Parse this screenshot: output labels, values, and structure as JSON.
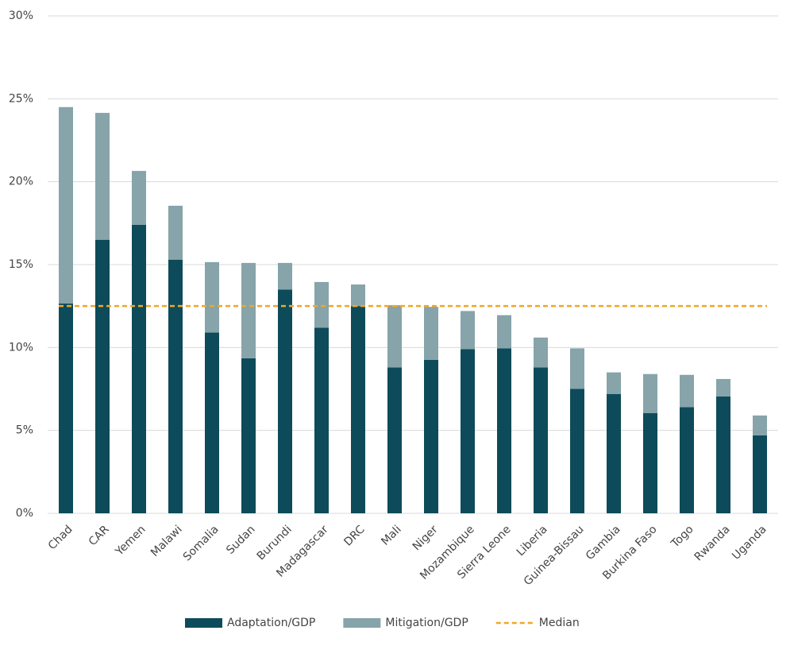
{
  "chart_data": {
    "type": "bar",
    "stacked": true,
    "categories": [
      "Chad",
      "CAR",
      "Yemen",
      "Malawi",
      "Somalia",
      "Sudan",
      "Burundi",
      "Madagascar",
      "DRC",
      "Mali",
      "Niger",
      "Mozambique",
      "Sierra Leone",
      "Liberia",
      "Guinea-Bissau",
      "Gambia",
      "Burkina Faso",
      "Togo",
      "Rwanda",
      "Uganda"
    ],
    "series": [
      {
        "name": "Adaptation/GDP",
        "color": "#0d4b5a",
        "values": [
          12.65,
          16.5,
          17.4,
          15.3,
          10.9,
          9.35,
          13.5,
          11.2,
          12.5,
          8.8,
          9.25,
          9.9,
          9.95,
          8.8,
          7.5,
          7.2,
          6.05,
          6.4,
          7.05,
          4.7
        ]
      },
      {
        "name": "Mitigation/GDP",
        "color": "#86a4a9",
        "values": [
          11.85,
          7.65,
          3.25,
          3.25,
          4.25,
          5.75,
          1.6,
          2.75,
          1.3,
          3.75,
          3.2,
          2.3,
          2.0,
          1.8,
          2.45,
          1.3,
          2.35,
          1.95,
          1.05,
          1.2
        ]
      }
    ],
    "median": {
      "name": "Median",
      "value": 12.5,
      "color": "#f5a623"
    },
    "ylim": [
      0,
      30
    ],
    "yticks": [
      {
        "value": 0,
        "label": "0%"
      },
      {
        "value": 5,
        "label": "5%"
      },
      {
        "value": 10,
        "label": "10%"
      },
      {
        "value": 15,
        "label": "15%"
      },
      {
        "value": 20,
        "label": "20%"
      },
      {
        "value": 25,
        "label": "25%"
      },
      {
        "value": 30,
        "label": "30%"
      }
    ],
    "grid": true,
    "legend": "bottom"
  }
}
